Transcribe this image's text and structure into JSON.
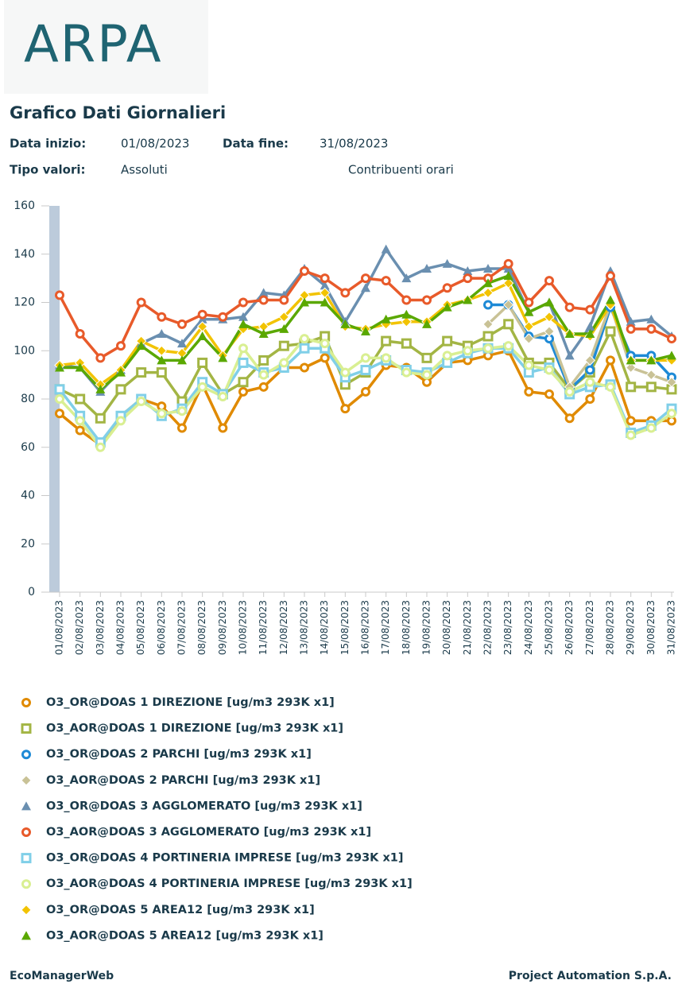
{
  "logo": "ARPA",
  "header": {
    "title": "Grafico Dati Giornalieri",
    "start_label": "Data inizio:",
    "start_value": "01/08/2023",
    "end_label": "Data fine:",
    "end_value": "31/08/2023",
    "type_label": "Tipo valori:",
    "type_value": "Assoluti",
    "contrib": "Contribuenti orari"
  },
  "footer": {
    "left": "EcoManagerWeb",
    "right": "Project Automation S.p.A."
  },
  "chart_data": {
    "type": "line",
    "categories": [
      "01/08/2023",
      "02/08/2023",
      "03/08/2023",
      "04/08/2023",
      "05/08/2023",
      "06/08/2023",
      "07/08/2023",
      "08/08/2023",
      "09/08/2023",
      "10/08/2023",
      "11/08/2023",
      "12/08/2023",
      "13/08/2023",
      "14/08/2023",
      "15/08/2023",
      "16/08/2023",
      "17/08/2023",
      "18/08/2023",
      "19/08/2023",
      "20/08/2023",
      "21/08/2023",
      "22/08/2023",
      "23/08/2023",
      "24/08/2023",
      "25/08/2023",
      "26/08/2023",
      "27/08/2023",
      "28/08/2023",
      "29/08/2023",
      "30/08/2023",
      "31/08/2023"
    ],
    "ylim": [
      0,
      160
    ],
    "yticks": [
      0,
      20,
      40,
      60,
      80,
      100,
      120,
      140,
      160
    ],
    "grid": false,
    "series": [
      {
        "name": "O3_OR@DOAS 1 DIREZIONE [ug/m3 293K x1]",
        "color": "#e08a00",
        "marker": "circle",
        "values": [
          74,
          67,
          61,
          73,
          80,
          77,
          68,
          86,
          68,
          83,
          85,
          93,
          93,
          97,
          76,
          83,
          94,
          93,
          87,
          95,
          96,
          98,
          100,
          83,
          82,
          72,
          80,
          96,
          71,
          71,
          71
        ]
      },
      {
        "name": "O3_AOR@DOAS 1 DIREZIONE [ug/m3 293K x1]",
        "color": "#a3b544",
        "marker": "square",
        "values": [
          84,
          80,
          72,
          84,
          91,
          91,
          79,
          95,
          82,
          87,
          96,
          102,
          103,
          106,
          86,
          91,
          104,
          103,
          97,
          104,
          102,
          106,
          111,
          95,
          95,
          84,
          91,
          108,
          85,
          85,
          84
        ]
      },
      {
        "name": "O3_OR@DOAS 2 PARCHI [ug/m3 293K x1]",
        "color": "#1e8ad6",
        "marker": "circle",
        "values": [
          null,
          null,
          null,
          null,
          null,
          null,
          null,
          null,
          null,
          null,
          null,
          null,
          null,
          null,
          null,
          null,
          null,
          null,
          null,
          null,
          null,
          119,
          119,
          106,
          105,
          84,
          92,
          118,
          98,
          98,
          89
        ]
      },
      {
        "name": "O3_AOR@DOAS 2 PARCHI [ug/m3 293K x1]",
        "color": "#c9c296",
        "marker": "diamond",
        "values": [
          null,
          null,
          null,
          null,
          null,
          null,
          null,
          null,
          null,
          null,
          null,
          null,
          null,
          null,
          null,
          null,
          null,
          null,
          null,
          null,
          null,
          111,
          119,
          105,
          108,
          85,
          96,
          119,
          93,
          90,
          87
        ]
      },
      {
        "name": "O3_OR@DOAS 3 AGGLOMERATO [ug/m3 293K x1]",
        "color": "#6a8fb0",
        "marker": "triangle",
        "values": [
          94,
          93,
          83,
          92,
          103,
          107,
          103,
          113,
          113,
          114,
          124,
          123,
          134,
          127,
          112,
          126,
          142,
          130,
          134,
          136,
          133,
          134,
          134,
          116,
          120,
          98,
          110,
          133,
          112,
          113,
          106
        ]
      },
      {
        "name": "O3_AOR@DOAS 3 AGGLOMERATO [ug/m3 293K x1]",
        "color": "#e85a2a",
        "marker": "circle",
        "values": [
          123,
          107,
          97,
          102,
          120,
          114,
          111,
          115,
          114,
          120,
          121,
          121,
          133,
          130,
          124,
          130,
          129,
          121,
          121,
          126,
          130,
          130,
          136,
          120,
          129,
          118,
          117,
          131,
          109,
          109,
          105
        ]
      },
      {
        "name": "O3_OR@DOAS 4 PORTINERIA IMPRESE [ug/m3 293K x1]",
        "color": "#80cfe8",
        "marker": "square",
        "values": [
          84,
          73,
          62,
          73,
          80,
          73,
          76,
          87,
          82,
          95,
          91,
          93,
          101,
          101,
          89,
          92,
          96,
          92,
          91,
          95,
          99,
          101,
          101,
          91,
          93,
          82,
          85,
          86,
          66,
          69,
          76
        ]
      },
      {
        "name": "O3_AOR@DOAS 4 PORTINERIA IMPRESE [ug/m3 293K x1]",
        "color": "#d9ef92",
        "marker": "circle",
        "values": [
          80,
          71,
          60,
          71,
          79,
          74,
          75,
          85,
          81,
          101,
          90,
          95,
          105,
          103,
          91,
          97,
          97,
          91,
          90,
          98,
          100,
          101,
          102,
          94,
          92,
          83,
          87,
          85,
          65,
          68,
          74
        ]
      },
      {
        "name": "O3_OR@DOAS 5 AREA12 [ug/m3 293K x1]",
        "color": "#f2c300",
        "marker": "diamond",
        "values": [
          94,
          95,
          86,
          92,
          104,
          100,
          99,
          110,
          98,
          109,
          110,
          114,
          123,
          124,
          110,
          109,
          111,
          112,
          112,
          119,
          121,
          124,
          128,
          110,
          114,
          107,
          106,
          119,
          96,
          96,
          96
        ]
      },
      {
        "name": "O3_AOR@DOAS 5 AREA12 [ug/m3 293K x1]",
        "color": "#5aa800",
        "marker": "triangle",
        "values": [
          93,
          93,
          84,
          91,
          102,
          96,
          96,
          106,
          97,
          111,
          107,
          109,
          120,
          120,
          111,
          108,
          113,
          115,
          111,
          118,
          121,
          128,
          131,
          116,
          120,
          107,
          107,
          121,
          96,
          96,
          98
        ]
      }
    ]
  }
}
